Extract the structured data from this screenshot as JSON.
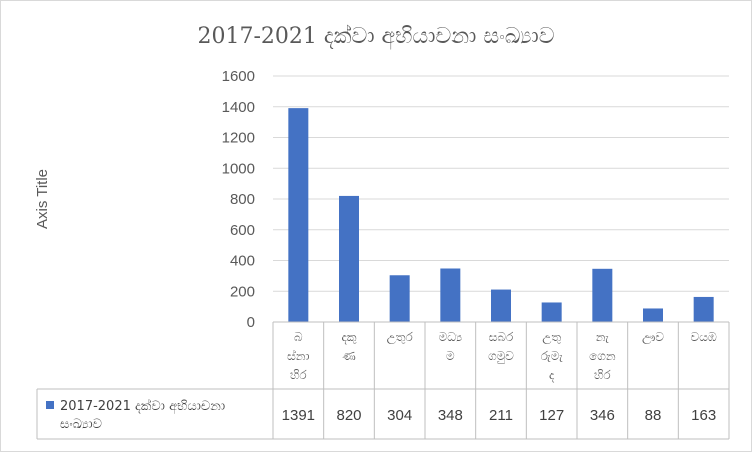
{
  "chart_data": {
    "type": "bar",
    "title": "2017-2021  දක්වා අභියාචනා සංඛ්‍යාව",
    "ylabel": "Axis Title",
    "xlabel": "",
    "ylim": [
      0,
      1600
    ],
    "yticks": [
      0,
      200,
      400,
      600,
      800,
      1000,
      1200,
      1400,
      1600
    ],
    "grid": true,
    "legend_placement": "bottom-left (data table)",
    "categories": [
      [
        "බ",
        "ස්නා",
        "හිර"
      ],
      [
        "දකු",
        "ණ"
      ],
      [
        "උතුර"
      ],
      [
        "මධ්‍ය",
        "ම"
      ],
      [
        "සබර",
        "ගමුව"
      ],
      [
        "උතු",
        "රුමැ",
        "ද"
      ],
      [
        "නැ",
        "ගෙන",
        "හිර"
      ],
      [
        "ඌව"
      ],
      [
        "වයඹ"
      ]
    ],
    "series": [
      {
        "name": "2017-2021  දක්වා අභියාචනා සංඛ්‍යාව",
        "values": [
          1391,
          820,
          304,
          348,
          211,
          127,
          346,
          88,
          163
        ],
        "color": "#4472c4"
      }
    ],
    "data_table_values": [
      "1391",
      "820",
      "304",
      "348",
      "211",
      "127",
      "346",
      "88",
      "163"
    ],
    "legend_label_lines": [
      "2017-2021  දක්වා අභියාචනා",
      "සංඛ්‍යාව"
    ]
  }
}
